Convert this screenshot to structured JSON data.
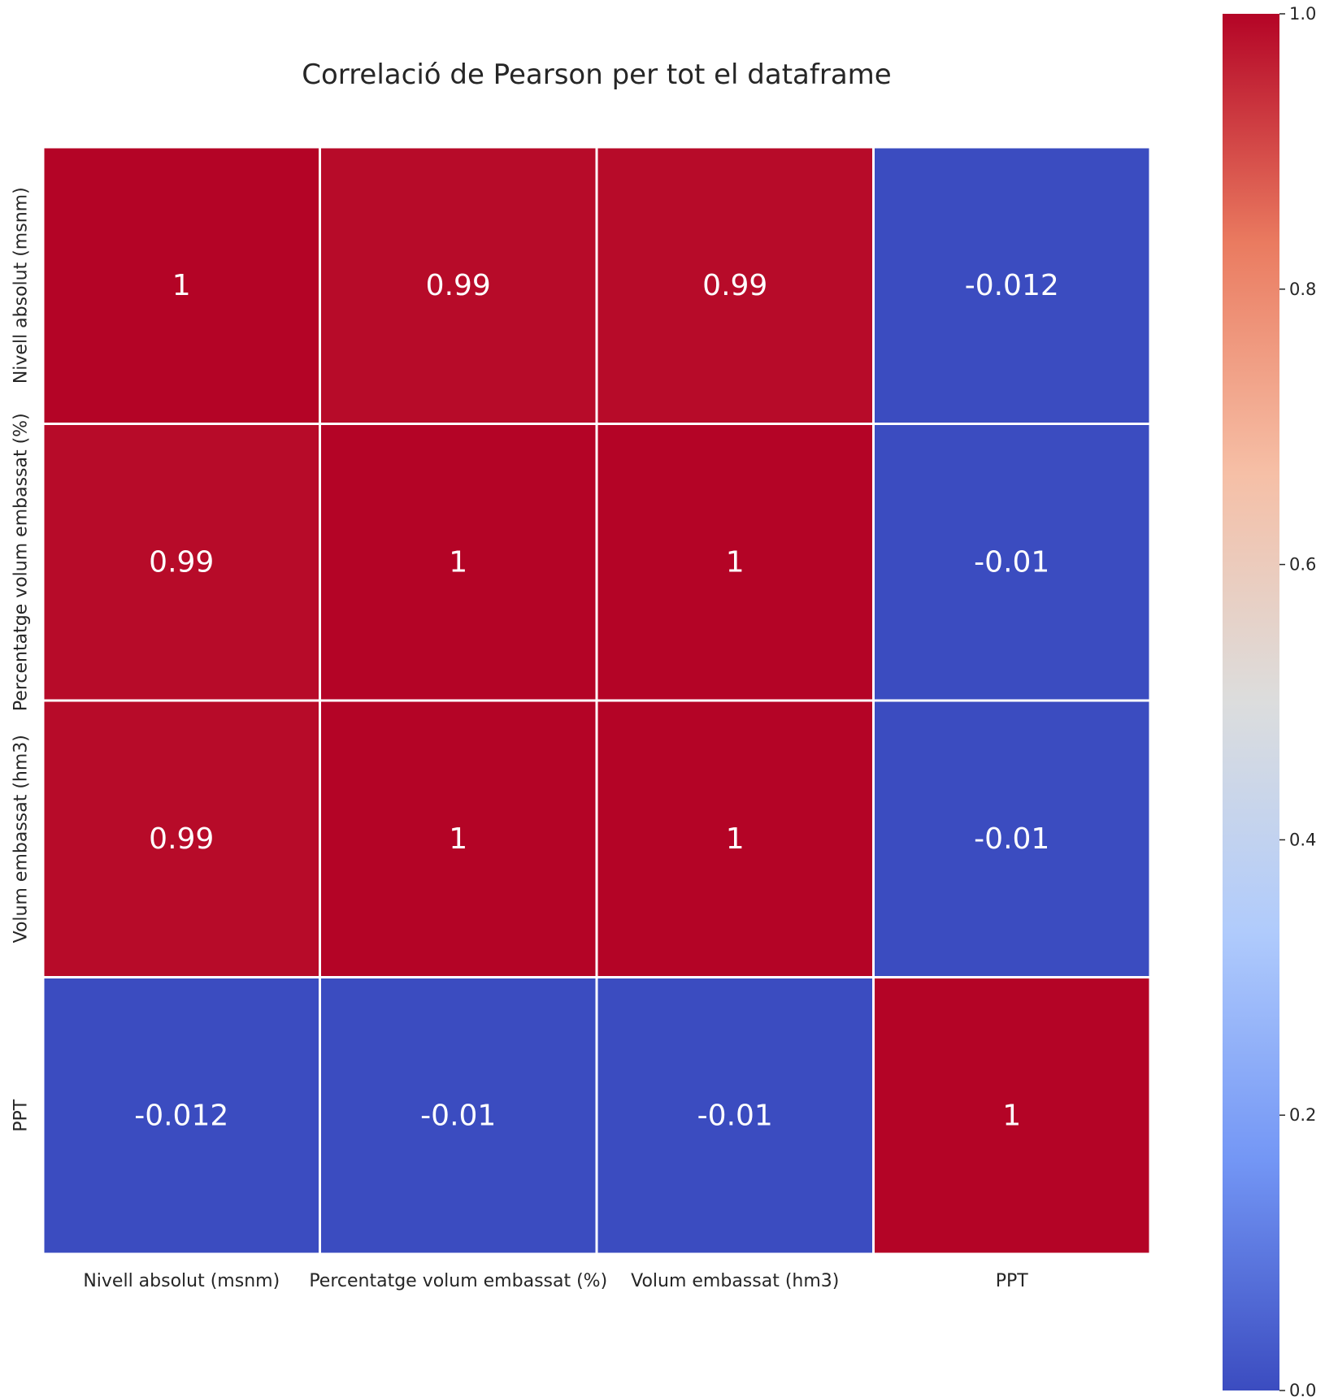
{
  "chart_data": {
    "type": "heatmap",
    "title": "Correlació de Pearson per tot el dataframe",
    "xlabel": "",
    "ylabel": "",
    "x_categories": [
      "Nivell absolut (msnm)",
      "Percentatge volum embassat (%)",
      "Volum embassat (hm3)",
      "PPT"
    ],
    "y_categories": [
      "Nivell absolut (msnm)",
      "Percentatge volum embassat (%)",
      "Volum embassat (hm3)",
      "PPT"
    ],
    "values": [
      [
        1,
        0.99,
        0.99,
        -0.012
      ],
      [
        0.99,
        1,
        1,
        -0.01
      ],
      [
        0.99,
        1,
        1,
        -0.01
      ],
      [
        -0.012,
        -0.01,
        -0.01,
        1
      ]
    ],
    "annotations": [
      [
        "1",
        "0.99",
        "0.99",
        "-0.012"
      ],
      [
        "0.99",
        "1",
        "1",
        "-0.01"
      ],
      [
        "0.99",
        "1",
        "1",
        "-0.01"
      ],
      [
        "-0.012",
        "-0.01",
        "-0.01",
        "1"
      ]
    ],
    "colormap": "coolwarm",
    "colormap_stops": [
      "#3b4cc0",
      "#7396f5",
      "#b0cbfc",
      "#dcdddd",
      "#f6bfa6",
      "#ea7b60",
      "#b40426"
    ],
    "colorbar": {
      "range": [
        0.0,
        1.0
      ],
      "ticks": [
        "0.0",
        "0.2",
        "0.4",
        "0.6",
        "0.8",
        "1.0"
      ],
      "location": "right"
    },
    "grid": false
  }
}
